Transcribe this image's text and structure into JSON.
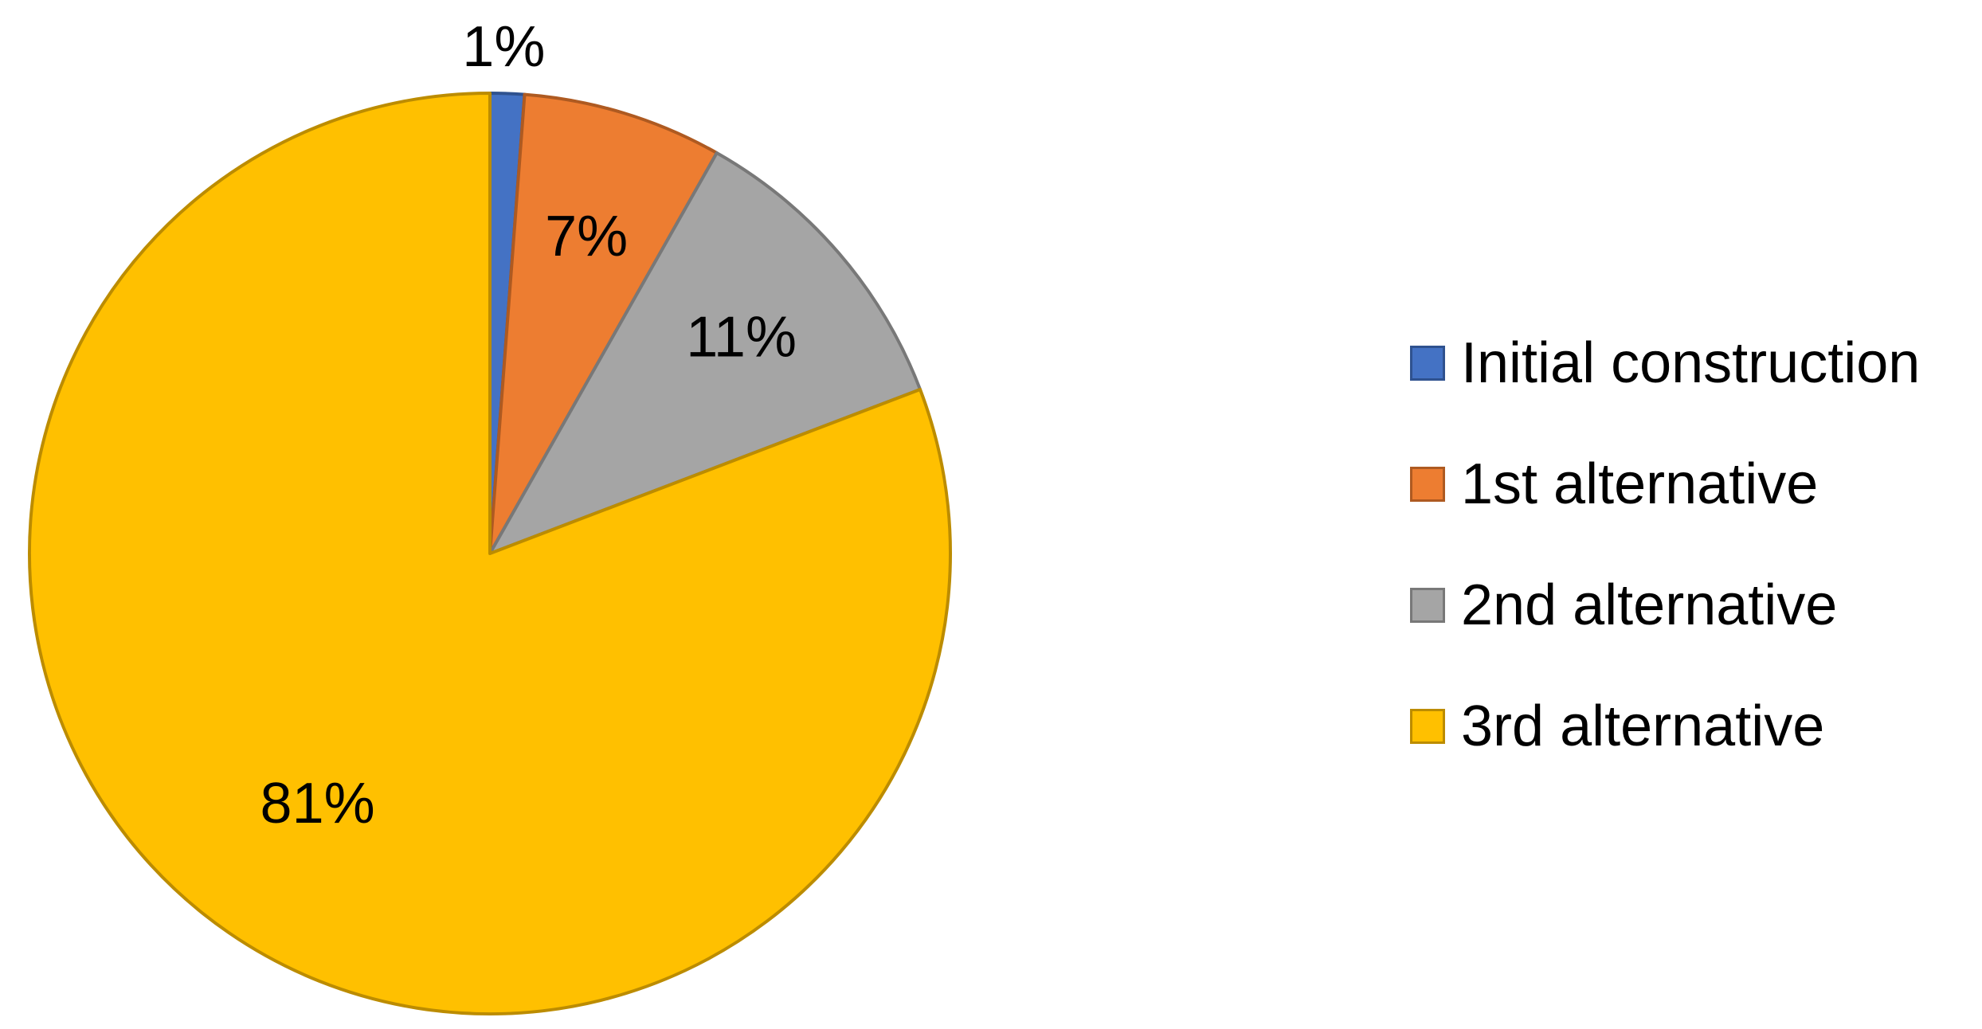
{
  "chart_data": {
    "type": "pie",
    "title": "",
    "legend_position": "right",
    "start_angle": "12 o'clock, clockwise",
    "slices": [
      {
        "name": "Initial construction",
        "value": 1.2,
        "label": "1%",
        "color": "#4472C4",
        "border": "#2F528F"
      },
      {
        "name": "1st alternative",
        "value": 7,
        "label": "7%",
        "color": "#ED7D31",
        "border": "#AE5A21"
      },
      {
        "name": "2nd alternative",
        "value": 11,
        "label": "11%",
        "color": "#A5A5A5",
        "border": "#787878"
      },
      {
        "name": "3rd alternative",
        "value": 80.8,
        "label": "81%",
        "color": "#FFC000",
        "border": "#BC8C00"
      }
    ]
  }
}
